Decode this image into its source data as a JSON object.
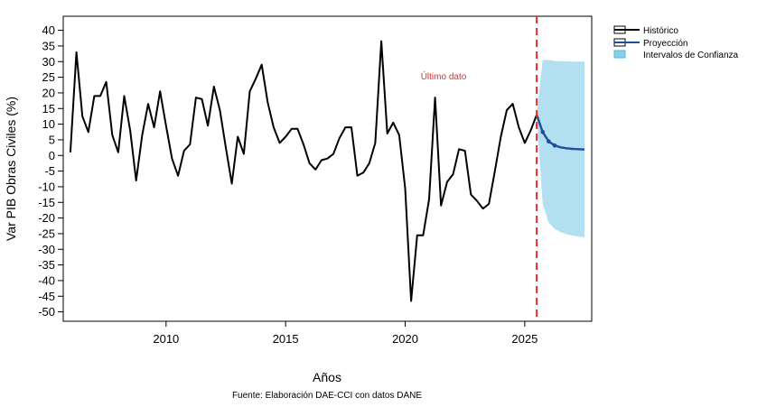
{
  "chart_data": {
    "type": "line",
    "title": "",
    "xlabel": "Años",
    "ylabel": "Var PIB Obras Civiles (%)",
    "source": "Fuente: Elaboración DAE-CCI con datos DANE",
    "annotation": "Último dato",
    "xlim": [
      2005.7,
      2027.8
    ],
    "ylim": [
      -53,
      44.5
    ],
    "x_ticks": [
      2010,
      2015,
      2020,
      2025
    ],
    "y_ticks": [
      -50,
      -45,
      -40,
      -35,
      -30,
      -25,
      -20,
      -15,
      -10,
      -5,
      0,
      5,
      10,
      15,
      20,
      25,
      30,
      35,
      40
    ],
    "last_data_x": 2025.5,
    "grid": false,
    "legend_position": "top-right",
    "colors": {
      "historico": "#000000",
      "proyeccion": "#1f4e9c",
      "intervalos": "#b3e0f0",
      "vline": "#e32d2d",
      "annotation": "#e32d2d"
    },
    "legend": [
      {
        "name": "Histórico",
        "kind": "line",
        "color": "#000000"
      },
      {
        "name": "Proyección",
        "kind": "line",
        "color": "#1f4e9c"
      },
      {
        "name": "Intervalos de Confianza",
        "kind": "fill",
        "color": "#87ceeb"
      }
    ],
    "series": [
      {
        "name": "Histórico",
        "x": [
          2006.0,
          2006.25,
          2006.5,
          2006.75,
          2007.0,
          2007.25,
          2007.5,
          2007.75,
          2008.0,
          2008.25,
          2008.5,
          2008.75,
          2009.0,
          2009.25,
          2009.5,
          2009.75,
          2010.0,
          2010.25,
          2010.5,
          2010.75,
          2011.0,
          2011.25,
          2011.5,
          2011.75,
          2012.0,
          2012.25,
          2012.5,
          2012.75,
          2013.0,
          2013.25,
          2013.5,
          2013.75,
          2014.0,
          2014.25,
          2014.5,
          2014.75,
          2015.0,
          2015.25,
          2015.5,
          2015.75,
          2016.0,
          2016.25,
          2016.5,
          2016.75,
          2017.0,
          2017.25,
          2017.5,
          2017.75,
          2018.0,
          2018.25,
          2018.5,
          2018.75,
          2019.0,
          2019.25,
          2019.5,
          2019.75,
          2020.0,
          2020.25,
          2020.5,
          2020.75,
          2021.0,
          2021.25,
          2021.5,
          2021.75,
          2022.0,
          2022.25,
          2022.5,
          2022.75,
          2023.0,
          2023.25,
          2023.5,
          2023.75,
          2024.0,
          2024.25,
          2024.5,
          2024.75,
          2025.0,
          2025.25,
          2025.5
        ],
        "y": [
          1,
          33,
          12.5,
          7.5,
          19,
          19,
          23.5,
          6.5,
          1,
          19,
          8,
          -8,
          6.5,
          16.5,
          9,
          20.5,
          9.5,
          -1,
          -6.5,
          1.5,
          3.5,
          18.5,
          18,
          9.5,
          22,
          14.5,
          2.5,
          -9,
          6,
          0.5,
          20.5,
          24.5,
          29,
          17,
          9,
          4,
          6,
          8.5,
          8.5,
          3.5,
          -2.5,
          -4.5,
          -1.5,
          -1,
          0.5,
          5.5,
          9,
          9,
          -6.5,
          -5.5,
          -2.5,
          4,
          36.5,
          7,
          10.5,
          6.5,
          -10.5,
          -46.5,
          -25.5,
          -25.5,
          -14,
          18.5,
          -16,
          -8.5,
          -6,
          2,
          1.5,
          -12.5,
          -14.5,
          -17,
          -15.5,
          -5,
          6,
          14.5,
          16.5,
          9,
          4,
          8,
          13
        ]
      },
      {
        "name": "Proyección",
        "x": [
          2025.5,
          2025.75,
          2026.0,
          2026.25,
          2026.5,
          2026.75,
          2027.0,
          2027.25,
          2027.5
        ],
        "y": [
          13,
          7.5,
          4.5,
          3.2,
          2.6,
          2.3,
          2.1,
          2.0,
          1.9
        ]
      }
    ],
    "confidence_interval": {
      "x": [
        2025.5,
        2025.75,
        2026.0,
        2026.25,
        2026.5,
        2026.75,
        2027.0,
        2027.25,
        2027.5
      ],
      "upper": [
        13,
        30.5,
        30.5,
        30.2,
        30.1,
        30.1,
        30.0,
        30.0,
        30.0
      ],
      "lower": [
        13,
        -15.5,
        -21.5,
        -23.5,
        -24.5,
        -25.2,
        -25.6,
        -25.9,
        -26.2
      ]
    }
  }
}
